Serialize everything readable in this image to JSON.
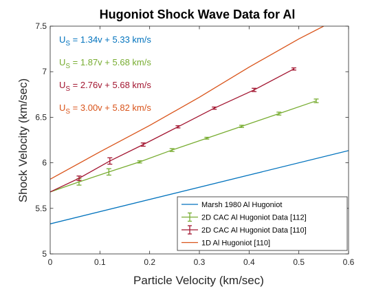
{
  "chart_data": {
    "type": "line",
    "title": "Hugoniot Shock Wave Data for Al",
    "xlabel": "Particle Velocity (km/sec)",
    "ylabel": "Shock Velocity (km/sec)",
    "xlim": [
      0,
      0.6
    ],
    "ylim": [
      5,
      7.5
    ],
    "xticks": [
      "0",
      "0.1",
      "0.2",
      "0.3",
      "0.4",
      "0.5",
      "0.6"
    ],
    "yticks": [
      "5",
      "5.5",
      "6",
      "6.5",
      "7",
      "7.5"
    ],
    "grid": false,
    "legend_position": "bottom-right",
    "series": [
      {
        "name": "Marsh 1980 Al Hugoniot",
        "kind": "line",
        "color": "#0072BD",
        "x": [
          0,
          0.6
        ],
        "y": [
          5.33,
          6.134
        ]
      },
      {
        "name": "2D CAC Al Hugoniot Data [112]",
        "kind": "errorbar",
        "color": "#77AC30",
        "x": [
          0,
          0.058,
          0.118,
          0.18,
          0.245,
          0.315,
          0.385,
          0.46,
          0.535
        ],
        "y": [
          5.68,
          5.79,
          5.9,
          6.01,
          6.14,
          6.27,
          6.4,
          6.54,
          6.68
        ],
        "err": [
          0,
          0.035,
          0.035,
          0.012,
          0.016,
          0.01,
          0.012,
          0.016,
          0.02
        ]
      },
      {
        "name": "2D CAC Al Hugoniot Data [110]",
        "kind": "errorbar",
        "color": "#A2142F",
        "x": [
          0,
          0.058,
          0.12,
          0.187,
          0.257,
          0.33,
          0.41,
          0.49
        ],
        "y": [
          5.68,
          5.83,
          6.02,
          6.2,
          6.395,
          6.6,
          6.8,
          7.03
        ],
        "err": [
          0,
          0.025,
          0.035,
          0.018,
          0.012,
          0.012,
          0.018,
          0.012
        ]
      },
      {
        "name": "1D Al Hugoniot [110]",
        "kind": "line",
        "color": "#D95319",
        "x": [
          0,
          0.1,
          0.2,
          0.3,
          0.4,
          0.5,
          0.55
        ],
        "y": [
          5.82,
          6.12,
          6.41,
          6.72,
          7.05,
          7.36,
          7.5
        ]
      }
    ],
    "annotations": [
      {
        "base": "U",
        "sub": "S",
        "rest": " = 1.34v + 5.33 km/s",
        "color": "#0072BD"
      },
      {
        "base": "U",
        "sub": "S",
        "rest": " = 1.87v + 5.68 km/s",
        "color": "#77AC30"
      },
      {
        "base": "U",
        "sub": "S",
        "rest": " = 2.76v + 5.68 km/s",
        "color": "#A2142F"
      },
      {
        "base": "U",
        "sub": "S",
        "rest": " = 3.00v + 5.82 km/s",
        "color": "#D95319"
      }
    ]
  }
}
